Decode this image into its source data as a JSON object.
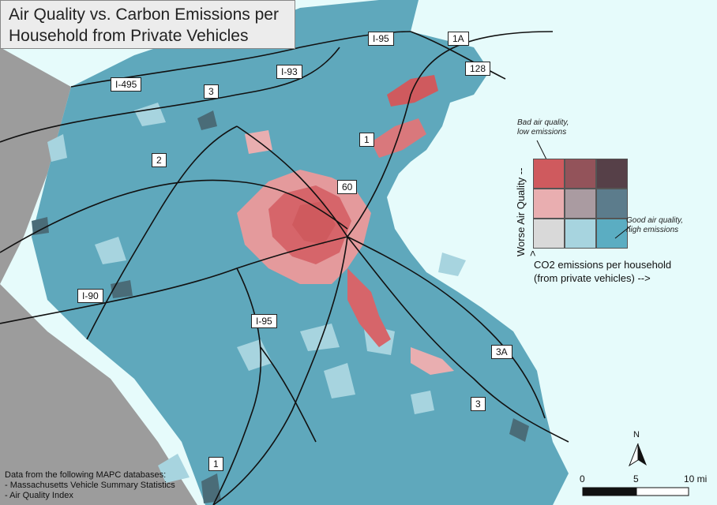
{
  "title": {
    "line1": "Air Quality vs. Carbon Emissions per",
    "line2": "Household from Private Vehicles"
  },
  "highway_labels": {
    "i95_north": "I-95",
    "rt1a": "1A",
    "i93": "I-93",
    "i495": "I-495",
    "rt3_north": "3",
    "rt128": "128",
    "rt1_north": "1",
    "rt2": "2",
    "rt60": "60",
    "i90": "I-90",
    "i95_south": "I-95",
    "rt3a": "3A",
    "rt3_south": "3",
    "rt1_south": "1"
  },
  "legend": {
    "note_top": {
      "line1": "Bad air quality,",
      "line2": "low emissions"
    },
    "note_bottom": {
      "line1": "Good air quality,",
      "line2": "high emissions"
    },
    "y_axis_label": "Worse Air Quality -->",
    "x_axis_label": {
      "line1": "CO2 emissions per household",
      "line2": "(from private vehicles) -->"
    },
    "grid_colors": [
      [
        "#cf5a5e",
        "#93535a",
        "#564048"
      ],
      [
        "#e9aeb0",
        "#aa9ba1",
        "#5c7c8c"
      ],
      [
        "#d9d9d9",
        "#a7d4df",
        "#5badc2"
      ]
    ]
  },
  "map_colors": {
    "water": "#e6fbfb",
    "out_of_area": "#9c9c9c",
    "base_tract": "#5fa8bc"
  },
  "north_arrow_label": "N",
  "scale_bar": {
    "labels": [
      "0",
      "5",
      "10 mi"
    ]
  },
  "source_note": {
    "line1": "Data from the following MAPC databases:",
    "line2": "- Massachusetts Vehicle Summary Statistics",
    "line3": "- Air Quality Index"
  }
}
